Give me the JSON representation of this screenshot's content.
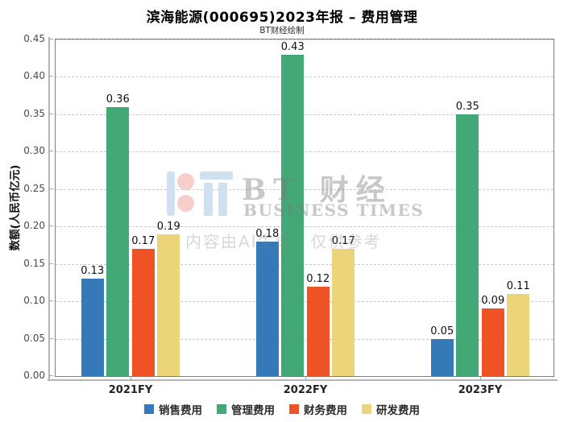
{
  "chart_data": {
    "type": "bar",
    "title": "滨海能源(000695)2023年报 – 费用管理",
    "subtitle": "BT财经绘制",
    "ylabel": "数额(人民币亿元)",
    "categories": [
      "2021FY",
      "2022FY",
      "2023FY"
    ],
    "series": [
      {
        "name": "销售费用",
        "color": "#3579b8",
        "values": [
          0.13,
          0.18,
          0.05
        ]
      },
      {
        "name": "管理费用",
        "color": "#42a876",
        "values": [
          0.36,
          0.43,
          0.35
        ]
      },
      {
        "name": "财务费用",
        "color": "#ef5225",
        "values": [
          0.17,
          0.12,
          0.09
        ]
      },
      {
        "name": "研发费用",
        "color": "#ebd47a",
        "values": [
          0.19,
          0.17,
          0.11
        ]
      }
    ],
    "ylim": [
      0,
      0.45
    ],
    "ytick_step": 0.05,
    "grid": "horizontal-dashed",
    "legend_position": "bottom",
    "bar_label_format": "2-decimals"
  },
  "watermark": {
    "brand_cn": "BT 财经",
    "brand_en": "BUSINESS TIMES",
    "ai_note": "内容由AI生成，仅供参考",
    "logo_colors": {
      "light_blue": "#cfe0f0",
      "pink": "#f6cfca"
    }
  }
}
